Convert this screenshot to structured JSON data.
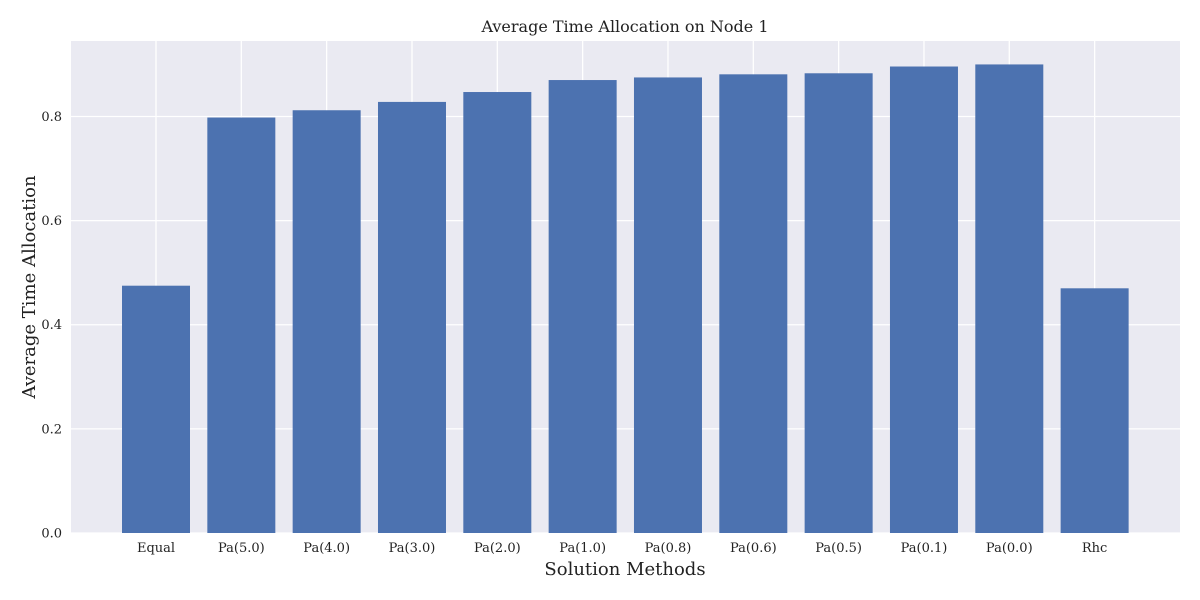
{
  "chart_data": {
    "type": "bar",
    "title": "Average Time Allocation on Node 1",
    "xlabel": "Solution Methods",
    "ylabel": "Average Time Allocation",
    "categories": [
      "Equal",
      "Pa(5.0)",
      "Pa(4.0)",
      "Pa(3.0)",
      "Pa(2.0)",
      "Pa(1.0)",
      "Pa(0.8)",
      "Pa(0.6)",
      "Pa(0.5)",
      "Pa(0.1)",
      "Pa(0.0)",
      "Rhc"
    ],
    "values": [
      0.475,
      0.798,
      0.812,
      0.828,
      0.847,
      0.87,
      0.875,
      0.881,
      0.883,
      0.896,
      0.9,
      0.47
    ],
    "ylim": [
      0,
      0.945
    ],
    "yticks": [
      0.0,
      0.2,
      0.4,
      0.6,
      0.8
    ],
    "ytick_labels": [
      "0.0",
      "0.2",
      "0.4",
      "0.6",
      "0.8"
    ],
    "grid": true,
    "colors": {
      "bar": "#4c72b0",
      "plot_bg": "#eaeaf2",
      "grid": "#ffffff"
    }
  }
}
